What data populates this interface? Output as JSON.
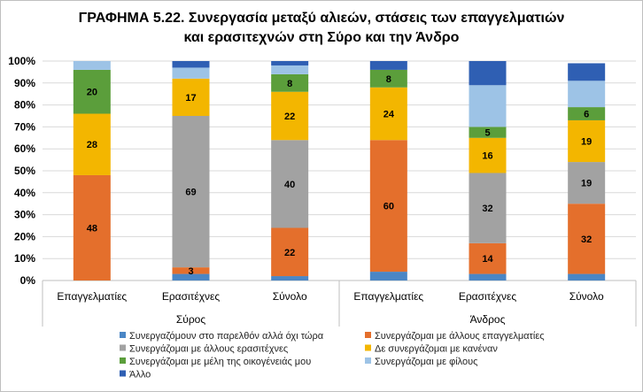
{
  "chart_data": {
    "type": "bar",
    "stacked": "percent",
    "title": "ΓΡΑΦΗΜΑ 5.22. Συνεργασία μεταξύ αλιεών, στάσεις των επαγγελματιών και ερασιτεχνών στη Σύρο και την Άνδρο",
    "title_lines": [
      "ΓΡΑΦΗΜΑ 5.22. Συνεργασία μεταξύ αλιεών, στάσεις των επαγγελματιών",
      "και ερασιτεχνών στη Σύρο και την Άνδρο"
    ],
    "ylim": [
      0,
      100
    ],
    "yticks": [
      "0%",
      "10%",
      "20%",
      "30%",
      "40%",
      "50%",
      "60%",
      "70%",
      "80%",
      "90%",
      "100%"
    ],
    "grid": true,
    "legend_position": "bottom",
    "groups": [
      {
        "label": "Σύρος",
        "categories": [
          "Επαγγελματίες",
          "Ερασιτέχνες",
          "Σύνολο"
        ]
      },
      {
        "label": "Άνδρος",
        "categories": [
          "Επαγγελματίες",
          "Ερασιτέχνες",
          "Σύνολο"
        ]
      }
    ],
    "categories": [
      "Επαγγελματίες",
      "Ερασιτέχνες",
      "Σύνολο",
      "Επαγγελματίες",
      "Ερασιτέχνες",
      "Σύνολο"
    ],
    "series": [
      {
        "name": "Συνεργαζόμουν στο παρελθόν αλλά όχι τώρα",
        "color": "#4a86c5",
        "values": [
          0,
          3,
          2,
          4,
          3,
          3
        ]
      },
      {
        "name": "Συνεργάζομαι με άλλους επαγγελματίες",
        "color": "#e46f2c",
        "values": [
          48,
          3,
          22,
          60,
          14,
          32
        ]
      },
      {
        "name": "Συνεργάζομαι με άλλους ερασιτέχνες",
        "color": "#a2a2a2",
        "values": [
          0,
          69,
          40,
          0,
          32,
          19
        ]
      },
      {
        "name": "Δε συνεργάζομαι με κανέναν",
        "color": "#f3b600",
        "values": [
          28,
          17,
          22,
          24,
          16,
          19
        ]
      },
      {
        "name": "Συνεργάζομαι με μέλη της οικογένειάς μου",
        "color": "#5b9e3b",
        "values": [
          20,
          0,
          8,
          8,
          5,
          6
        ]
      },
      {
        "name": "Συνεργάζομαι με φίλους",
        "color": "#9dc3e6",
        "values": [
          4,
          5,
          4,
          0,
          19,
          12
        ]
      },
      {
        "name": "Άλλο",
        "color": "#2f5fb3",
        "values": [
          0,
          3,
          2,
          4,
          11,
          8
        ]
      }
    ],
    "data_labels": [
      [
        null,
        null,
        null,
        null,
        null,
        null
      ],
      [
        "48",
        "3",
        "22",
        "60",
        "14",
        "32"
      ],
      [
        null,
        "69",
        "40",
        null,
        "32",
        "19"
      ],
      [
        "28",
        "17",
        "22",
        "24",
        "16",
        "19"
      ],
      [
        "20",
        null,
        "8",
        "8",
        "5",
        "6"
      ],
      [
        null,
        null,
        null,
        null,
        null,
        null
      ],
      [
        null,
        null,
        null,
        null,
        null,
        null
      ]
    ]
  }
}
